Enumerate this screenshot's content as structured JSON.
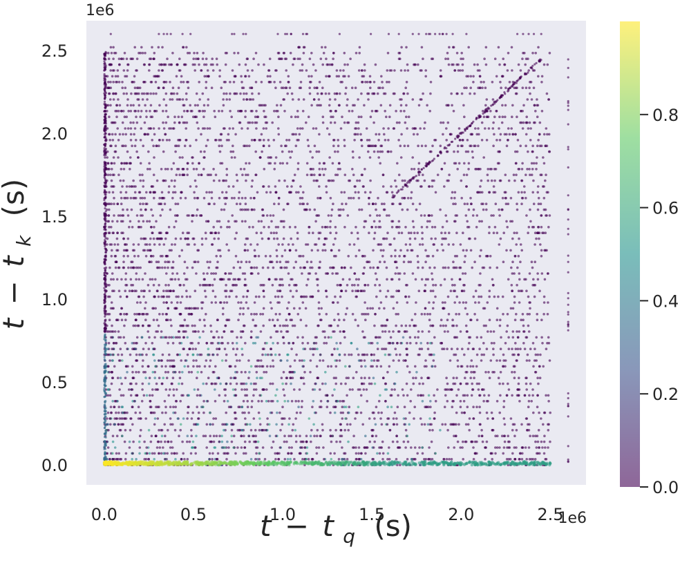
{
  "chart_data": {
    "type": "scatter",
    "title": "",
    "xlabel": {
      "var": "t",
      "minus": "−",
      "sub_base": "t",
      "sub": "q",
      "unit": "(s)"
    },
    "ylabel": {
      "var": "t",
      "minus": "−",
      "sub_base": "t",
      "sub": "k",
      "unit": "(s)"
    },
    "x_offset_label": "1e6",
    "y_offset_label": "1e6",
    "xlim": [
      -0.1,
      2.7
    ],
    "ylim": [
      -0.12,
      2.68
    ],
    "x_ticks": [
      0.0,
      0.5,
      1.0,
      1.5,
      2.0,
      2.5
    ],
    "y_ticks": [
      0.0,
      0.5,
      1.0,
      1.5,
      2.0,
      2.5
    ],
    "x_tick_labels": [
      "0.0",
      "0.5",
      "1.0",
      "1.5",
      "2.0",
      "2.5"
    ],
    "y_tick_labels": [
      "0.0",
      "0.5",
      "1.0",
      "1.5",
      "2.0",
      "2.5"
    ],
    "grid": false,
    "plot_background": "#eaeaf2",
    "colormap": "viridis",
    "point_alpha": 0.6,
    "colorbar": {
      "range": [
        0.0,
        1.0
      ],
      "ticks": [
        0.0,
        0.2,
        0.4,
        0.6,
        0.8
      ],
      "tick_labels": [
        "0.0",
        "0.2",
        "0.4",
        "0.6",
        "0.8"
      ]
    },
    "data_max": 2.6,
    "structure": {
      "baseline_band": {
        "y": 0.0,
        "x_range": [
          0.0,
          2.5
        ],
        "value_near_origin": 1.0,
        "value_far": 0.55
      },
      "diagonal": {
        "x_range": [
          1.6,
          2.45
        ],
        "value": 0.0
      },
      "vertical_gap_x": 1.87,
      "horizontal_gap_y": 1.85,
      "low_y_teal_region": {
        "y_range": [
          0.0,
          0.8
        ],
        "value_range": [
          0.3,
          0.6
        ]
      },
      "bulk_value": 0.0
    }
  }
}
